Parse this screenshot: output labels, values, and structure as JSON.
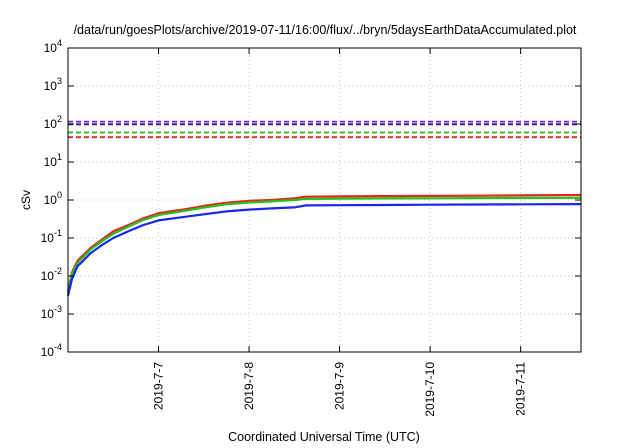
{
  "chart_data": {
    "type": "line",
    "title": "/data/run/goesPlots/archive/2019-07-11/16:00/flux/../bryn/5daysEarthDataAccumulated.plot",
    "xlabel": "Coordinated Universal Time (UTC)",
    "ylabel": "cSv",
    "yscale": "log",
    "ylim": [
      0.0001,
      10000
    ],
    "xlim": [
      "2019-07-06 00:00",
      "2019-07-11 16:00"
    ],
    "y_ticks": [
      {
        "value": 0.0001,
        "base": "10",
        "exp": "-4"
      },
      {
        "value": 0.001,
        "base": "10",
        "exp": "-3"
      },
      {
        "value": 0.01,
        "base": "10",
        "exp": "-2"
      },
      {
        "value": 0.1,
        "base": "10",
        "exp": "-1"
      },
      {
        "value": 1,
        "base": "10",
        "exp": "0"
      },
      {
        "value": 10,
        "base": "10",
        "exp": "1"
      },
      {
        "value": 100,
        "base": "10",
        "exp": "2"
      },
      {
        "value": 1000,
        "base": "10",
        "exp": "3"
      },
      {
        "value": 10000,
        "base": "10",
        "exp": "4"
      }
    ],
    "x_ticks": [
      "2019-7-7",
      "2019-7-8",
      "2019-7-9",
      "2019-7-10",
      "2019-7-11"
    ],
    "grid": true,
    "colors": {
      "red": "#e8251b",
      "green": "#22c21f",
      "blue": "#1826f0",
      "purple": "#8a24d4",
      "dark_blue": "#1a1a8e",
      "axis": "#000000",
      "grid": "#c8c8c8"
    },
    "thresholds": [
      {
        "value": 115,
        "color": "#8a24d4",
        "style": "dashed"
      },
      {
        "value": 98,
        "color": "#1a1a8e",
        "style": "dashed"
      },
      {
        "value": 60,
        "color": "#22c21f",
        "style": "dashed"
      },
      {
        "value": 45,
        "color": "#e8251b",
        "style": "dashed"
      }
    ],
    "series": [
      {
        "color": "#e8251b",
        "x": [
          "2019-07-06 00:00",
          "2019-07-06 01:00",
          "2019-07-06 02:30",
          "2019-07-06 04:00",
          "2019-07-06 06:00",
          "2019-07-06 09:00",
          "2019-07-06 12:00",
          "2019-07-06 16:00",
          "2019-07-06 20:00",
          "2019-07-07 00:00",
          "2019-07-07 06:00",
          "2019-07-07 12:00",
          "2019-07-07 18:00",
          "2019-07-08 00:00",
          "2019-07-08 06:00",
          "2019-07-08 12:00",
          "2019-07-08 15:00",
          "2019-07-09 00:00",
          "2019-07-09 12:00",
          "2019-07-10 00:00",
          "2019-07-10 12:00",
          "2019-07-11 00:00",
          "2019-07-11 16:00"
        ],
        "y": [
          0.004,
          0.012,
          0.025,
          0.035,
          0.055,
          0.09,
          0.15,
          0.22,
          0.33,
          0.45,
          0.55,
          0.7,
          0.85,
          0.95,
          1.0,
          1.1,
          1.22,
          1.25,
          1.27,
          1.28,
          1.3,
          1.32,
          1.35
        ]
      },
      {
        "color": "#22c21f",
        "x": [
          "2019-07-06 00:00",
          "2019-07-06 01:00",
          "2019-07-06 02:30",
          "2019-07-06 04:00",
          "2019-07-06 06:00",
          "2019-07-06 09:00",
          "2019-07-06 12:00",
          "2019-07-06 16:00",
          "2019-07-06 20:00",
          "2019-07-07 00:00",
          "2019-07-07 06:00",
          "2019-07-07 12:00",
          "2019-07-07 18:00",
          "2019-07-08 00:00",
          "2019-07-08 06:00",
          "2019-07-08 12:00",
          "2019-07-08 15:00",
          "2019-07-09 00:00",
          "2019-07-09 12:00",
          "2019-07-10 00:00",
          "2019-07-10 12:00",
          "2019-07-11 00:00",
          "2019-07-11 16:00"
        ],
        "y": [
          0.0035,
          0.011,
          0.022,
          0.031,
          0.05,
          0.082,
          0.13,
          0.2,
          0.3,
          0.4,
          0.5,
          0.63,
          0.77,
          0.86,
          0.92,
          1.0,
          1.07,
          1.09,
          1.1,
          1.11,
          1.12,
          1.13,
          1.14
        ]
      },
      {
        "color": "#1826f0",
        "x": [
          "2019-07-06 00:00",
          "2019-07-06 01:00",
          "2019-07-06 02:30",
          "2019-07-06 04:00",
          "2019-07-06 06:00",
          "2019-07-06 09:00",
          "2019-07-06 12:00",
          "2019-07-06 16:00",
          "2019-07-06 20:00",
          "2019-07-07 00:00",
          "2019-07-07 06:00",
          "2019-07-07 12:00",
          "2019-07-07 18:00",
          "2019-07-08 00:00",
          "2019-07-08 06:00",
          "2019-07-08 12:00",
          "2019-07-08 15:00",
          "2019-07-09 00:00",
          "2019-07-09 12:00",
          "2019-07-10 00:00",
          "2019-07-10 12:00",
          "2019-07-11 00:00",
          "2019-07-11 16:00"
        ],
        "y": [
          0.003,
          0.008,
          0.018,
          0.025,
          0.04,
          0.065,
          0.1,
          0.15,
          0.22,
          0.29,
          0.35,
          0.42,
          0.5,
          0.56,
          0.6,
          0.64,
          0.72,
          0.73,
          0.74,
          0.75,
          0.76,
          0.77,
          0.78
        ]
      }
    ]
  }
}
